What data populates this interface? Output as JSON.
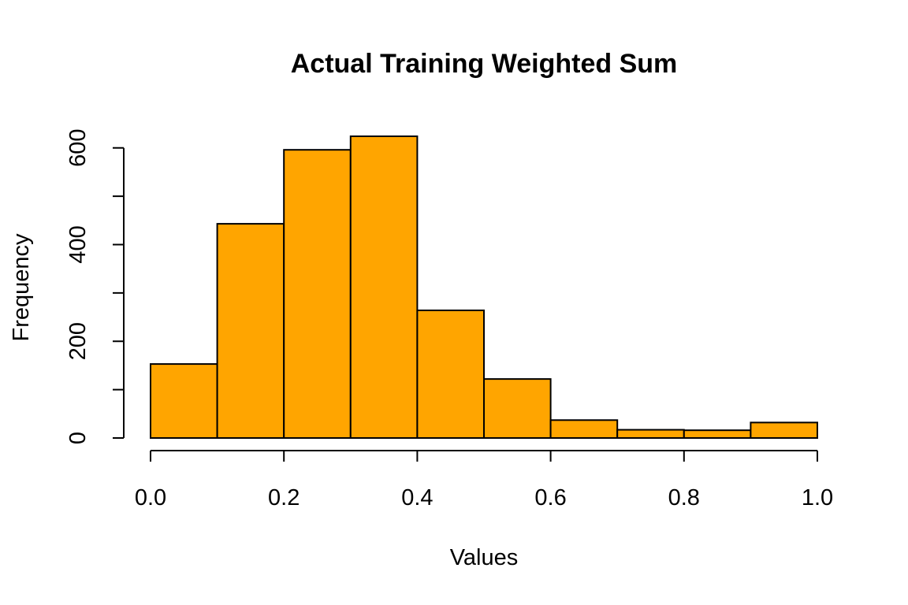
{
  "chart_data": {
    "type": "bar",
    "title": "Actual Training Weighted Sum",
    "xlabel": "Values",
    "ylabel": "Frequency",
    "bar_color": "#FFA500",
    "bin_edges": [
      0.0,
      0.1,
      0.2,
      0.3,
      0.4,
      0.5,
      0.6,
      0.7,
      0.8,
      0.9,
      1.0
    ],
    "values": [
      153,
      443,
      596,
      624,
      264,
      122,
      37,
      17,
      16,
      32
    ],
    "xlim": [
      0.0,
      1.0
    ],
    "ylim": [
      0,
      624
    ],
    "x_ticks": [
      0.0,
      0.2,
      0.4,
      0.6,
      0.8,
      1.0
    ],
    "x_tick_labels": [
      "0.0",
      "0.2",
      "0.4",
      "0.6",
      "0.8",
      "1.0"
    ],
    "y_ticks": [
      0,
      100,
      200,
      300,
      400,
      500,
      600
    ],
    "y_tick_labels": [
      "0",
      "",
      "200",
      "",
      "400",
      "",
      "600"
    ],
    "grid": false,
    "legend": "none"
  }
}
